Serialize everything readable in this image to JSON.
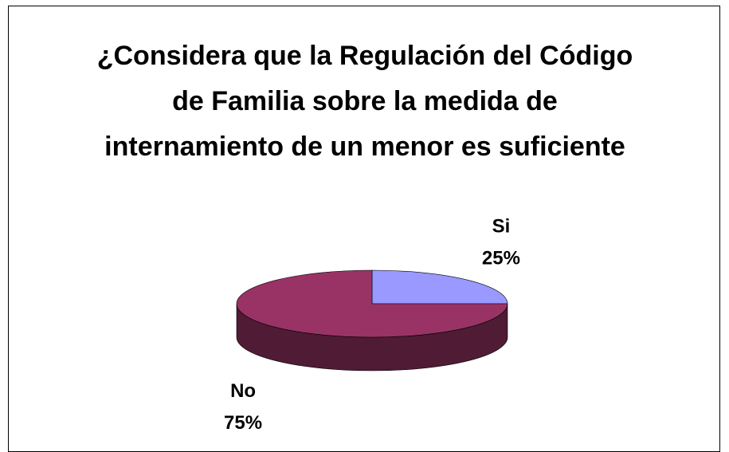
{
  "chart_data": {
    "type": "pie",
    "title": "¿Considera que la Regulación del Código de Familia sobre la medida de internamiento de un menor es suficiente",
    "categories": [
      "Si",
      "No"
    ],
    "values": [
      25,
      75
    ],
    "value_labels": [
      "25%",
      "75%"
    ],
    "colors": [
      "#9999ff",
      "#993366"
    ]
  }
}
